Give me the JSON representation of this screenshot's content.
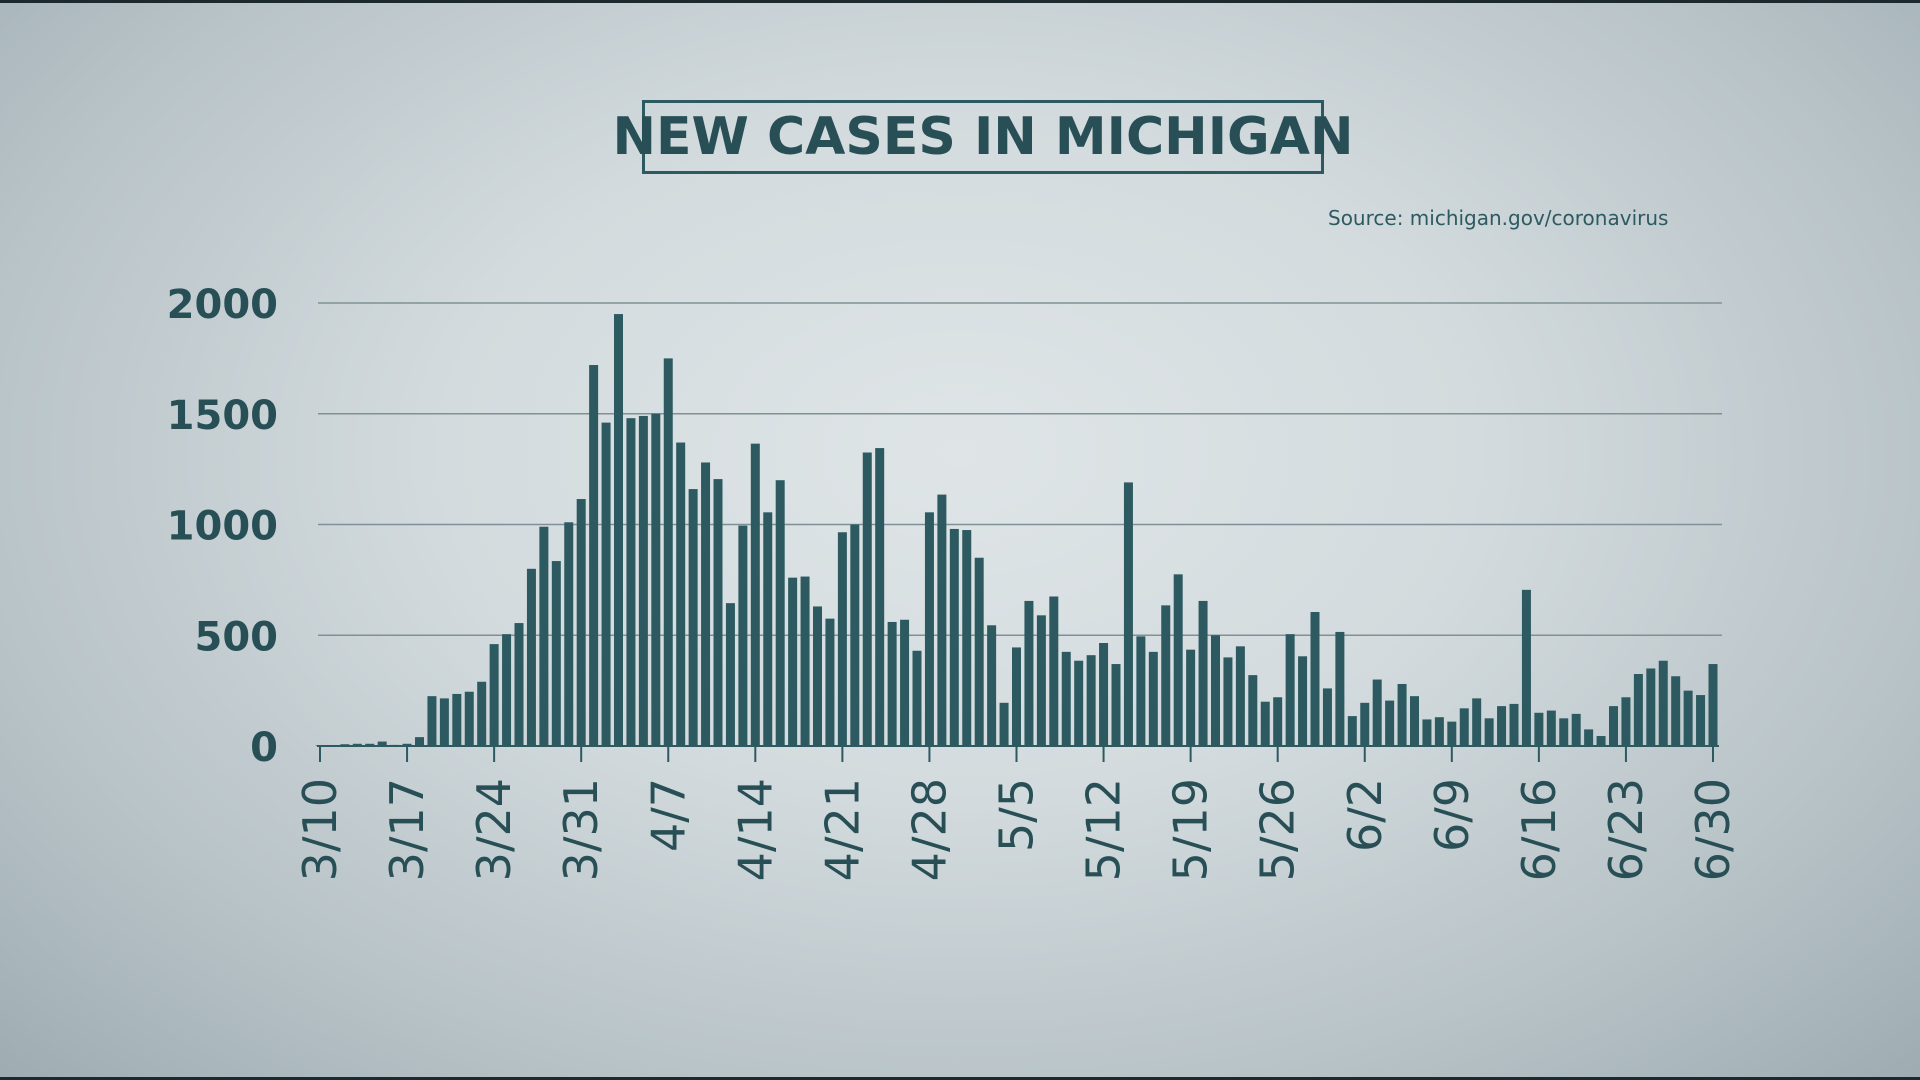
{
  "title": "NEW CASES IN MICHIGAN",
  "source": "Source: michigan.gov/coronavirus",
  "colors": {
    "bar": "#2d5a61",
    "text": "#284f56",
    "grid": "#7f9196"
  },
  "chart_data": {
    "type": "bar",
    "title": "NEW CASES IN MICHIGAN",
    "xlabel": "",
    "ylabel": "",
    "ylim": [
      0,
      2000
    ],
    "yticks": [
      "0",
      "500",
      "1000",
      "1500",
      "2000"
    ],
    "ytick_values": [
      0,
      500,
      1000,
      1500,
      2000
    ],
    "grid": true,
    "start_date": "3/10",
    "end_date": "6/30",
    "xtick_labels": [
      "3/10",
      "3/17",
      "3/24",
      "3/31",
      "4/7",
      "4/14",
      "4/21",
      "4/28",
      "5/5",
      "5/12",
      "5/19",
      "5/26",
      "6/2",
      "6/9",
      "6/16",
      "6/23",
      "6/30"
    ],
    "values": [
      2,
      3,
      8,
      10,
      10,
      20,
      5,
      10,
      40,
      225,
      215,
      235,
      245,
      290,
      460,
      505,
      555,
      800,
      990,
      835,
      1010,
      1115,
      1720,
      1460,
      1950,
      1480,
      1490,
      1500,
      1750,
      1370,
      1160,
      1280,
      1205,
      645,
      995,
      1365,
      1055,
      1200,
      760,
      765,
      630,
      575,
      965,
      1000,
      1325,
      1345,
      560,
      570,
      430,
      1055,
      1135,
      980,
      975,
      850,
      545,
      195,
      445,
      655,
      590,
      675,
      425,
      385,
      410,
      465,
      370,
      1190,
      495,
      425,
      635,
      775,
      435,
      655,
      500,
      400,
      450,
      320,
      200,
      220,
      505,
      405,
      605,
      260,
      515,
      135,
      195,
      300,
      205,
      280,
      225,
      120,
      130,
      110,
      170,
      215,
      125,
      180,
      190,
      705,
      150,
      160,
      125,
      145,
      75,
      45,
      180,
      220,
      325,
      350,
      385,
      315,
      250,
      230,
      370
    ]
  }
}
